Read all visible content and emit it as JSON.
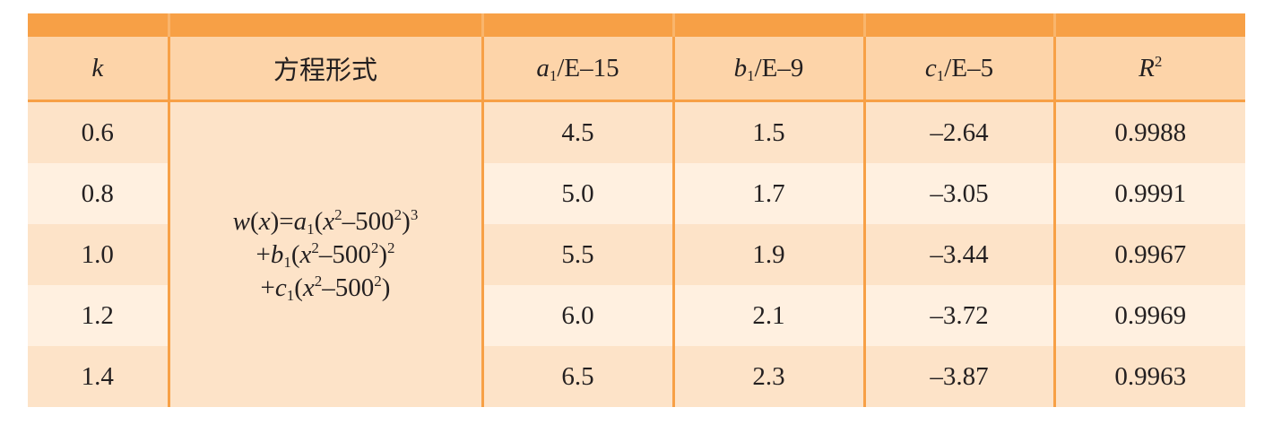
{
  "table": {
    "headers": {
      "k": "k",
      "form": "方程形式",
      "a1": {
        "var": "a",
        "sub": "1",
        "unit": "/E–15"
      },
      "b1": {
        "var": "b",
        "sub": "1",
        "unit": "/E–9"
      },
      "c1": {
        "var": "c",
        "sub": "1",
        "unit": "/E–5"
      },
      "r2": {
        "var": "R",
        "sup": "2"
      }
    },
    "formula": {
      "line1": {
        "w": "w",
        "x": "x",
        "eq": "=",
        "a": "a",
        "sub": "1",
        "x2": "x",
        "sup2": "2",
        "minus": "–500",
        "sup500": "2",
        "pow": "3"
      },
      "line2": {
        "plus": "+",
        "b": "b",
        "sub": "1",
        "x2": "x",
        "sup2": "2",
        "minus": "–500",
        "sup500": "2",
        "pow": "2"
      },
      "line3": {
        "plus": "+",
        "c": "c",
        "sub": "1",
        "x2": "x",
        "sup2": "2",
        "minus": "–500",
        "sup500": "2"
      }
    },
    "rows": [
      {
        "k": "0.6",
        "a1": "4.5",
        "b1": "1.5",
        "c1": "–2.64",
        "r2": "0.9988"
      },
      {
        "k": "0.8",
        "a1": "5.0",
        "b1": "1.7",
        "c1": "–3.05",
        "r2": "0.9991"
      },
      {
        "k": "1.0",
        "a1": "5.5",
        "b1": "1.9",
        "c1": "–3.44",
        "r2": "0.9967"
      },
      {
        "k": "1.2",
        "a1": "6.0",
        "b1": "2.1",
        "c1": "–3.72",
        "r2": "0.9969"
      },
      {
        "k": "1.4",
        "a1": "6.5",
        "b1": "2.3",
        "c1": "–3.87",
        "r2": "0.9963"
      }
    ]
  }
}
